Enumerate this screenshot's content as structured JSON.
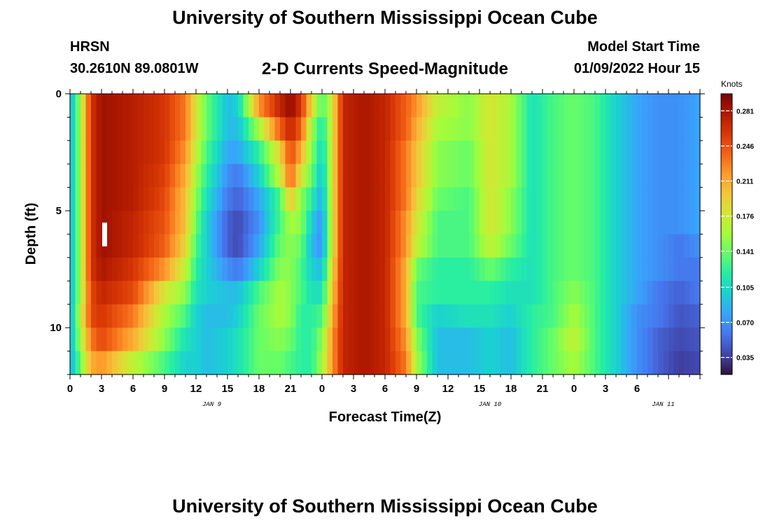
{
  "header": {
    "title": "University of Southern Mississippi Ocean Cube",
    "station": "HRSN",
    "coords": "30.2610N  89.0801W",
    "chart_title": "2-D Currents Speed-Magnitude",
    "model_label": "Model Start Time",
    "model_time": "01/09/2022 Hour 15"
  },
  "footer": {
    "title": "University of Southern Mississippi Ocean Cube"
  },
  "colors": {
    "scale": [
      "#30123b",
      "#4145ab",
      "#4675ed",
      "#39a2fc",
      "#1bcfd4",
      "#24eca6",
      "#61fc6c",
      "#a4fc3b",
      "#d1e834",
      "#f3c63a",
      "#fe9b2d",
      "#f36315",
      "#d93806",
      "#b11901",
      "#7a0402"
    ]
  },
  "chart_data": {
    "type": "heatmap",
    "xlabel": "Forecast Time(Z)",
    "ylabel": "Depth (ft)",
    "x_hours": [
      0,
      60
    ],
    "y_range": [
      0,
      12
    ],
    "x_tick_labels": [
      "0",
      "3",
      "6",
      "9",
      "12",
      "15",
      "18",
      "21",
      "0",
      "3",
      "6",
      "9",
      "12",
      "15",
      "18",
      "21",
      "0",
      "3",
      "6"
    ],
    "y_tick_labels": [
      "0",
      "5",
      "10"
    ],
    "date_labels": [
      "JAN 9",
      "JAN 10",
      "JAN 11"
    ],
    "colorbar": {
      "unit": "Knots",
      "range": [
        0.018,
        0.298
      ],
      "ticks": [
        "0.035",
        "0.070",
        "0.105",
        "0.141",
        "0.176",
        "0.211",
        "0.246",
        "0.281"
      ]
    },
    "depth_levels": 12,
    "hours": 60,
    "keyframes_note": "",
    "profiles": [
      {
        "h": 0,
        "v": [
          0.08,
          0.08,
          0.08,
          0.08,
          0.08,
          0.08,
          0.08,
          0.08,
          0.08,
          0.08,
          0.08,
          0.08
        ]
      },
      {
        "h": 1,
        "v": [
          0.16,
          0.16,
          0.16,
          0.16,
          0.16,
          0.16,
          0.16,
          0.16,
          0.16,
          0.17,
          0.16,
          0.14
        ]
      },
      {
        "h": 2,
        "v": [
          0.26,
          0.26,
          0.26,
          0.26,
          0.26,
          0.26,
          0.26,
          0.26,
          0.25,
          0.25,
          0.23,
          0.21
        ]
      },
      {
        "h": 3,
        "v": [
          0.285,
          0.285,
          0.285,
          0.285,
          0.285,
          0.285,
          0.285,
          0.28,
          0.27,
          0.26,
          0.25,
          0.22
        ]
      },
      {
        "h": 6,
        "v": [
          0.275,
          0.275,
          0.275,
          0.275,
          0.275,
          0.27,
          0.27,
          0.26,
          0.25,
          0.23,
          0.21,
          0.17
        ]
      },
      {
        "h": 9,
        "v": [
          0.26,
          0.26,
          0.26,
          0.255,
          0.25,
          0.245,
          0.24,
          0.22,
          0.18,
          0.16,
          0.15,
          0.13
        ]
      },
      {
        "h": 11,
        "v": [
          0.23,
          0.23,
          0.22,
          0.21,
          0.2,
          0.2,
          0.19,
          0.17,
          0.15,
          0.13,
          0.11,
          0.1
        ]
      },
      {
        "h": 12,
        "v": [
          0.18,
          0.18,
          0.17,
          0.16,
          0.15,
          0.14,
          0.13,
          0.12,
          0.11,
          0.1,
          0.1,
          0.1
        ]
      },
      {
        "h": 13,
        "v": [
          0.14,
          0.14,
          0.13,
          0.12,
          0.11,
          0.1,
          0.1,
          0.1,
          0.1,
          0.09,
          0.09,
          0.09
        ]
      },
      {
        "h": 15,
        "v": [
          0.09,
          0.09,
          0.08,
          0.07,
          0.06,
          0.05,
          0.05,
          0.07,
          0.09,
          0.09,
          0.1,
          0.1
        ]
      },
      {
        "h": 16,
        "v": [
          0.1,
          0.09,
          0.08,
          0.06,
          0.05,
          0.04,
          0.04,
          0.06,
          0.09,
          0.1,
          0.11,
          0.11
        ]
      },
      {
        "h": 18,
        "v": [
          0.22,
          0.16,
          0.12,
          0.1,
          0.08,
          0.07,
          0.08,
          0.1,
          0.13,
          0.14,
          0.14,
          0.14
        ]
      },
      {
        "h": 20,
        "v": [
          0.27,
          0.24,
          0.19,
          0.17,
          0.13,
          0.13,
          0.14,
          0.15,
          0.16,
          0.16,
          0.15,
          0.14
        ]
      },
      {
        "h": 21,
        "v": [
          0.29,
          0.27,
          0.25,
          0.24,
          0.2,
          0.16,
          0.15,
          0.15,
          0.15,
          0.15,
          0.14,
          0.13
        ]
      },
      {
        "h": 22,
        "v": [
          0.26,
          0.24,
          0.21,
          0.18,
          0.15,
          0.15,
          0.14,
          0.13,
          0.13,
          0.12,
          0.12,
          0.12
        ]
      },
      {
        "h": 23,
        "v": [
          0.19,
          0.16,
          0.15,
          0.14,
          0.12,
          0.1,
          0.09,
          0.1,
          0.11,
          0.12,
          0.12,
          0.12
        ]
      },
      {
        "h": 24,
        "v": [
          0.13,
          0.11,
          0.1,
          0.09,
          0.08,
          0.07,
          0.07,
          0.09,
          0.11,
          0.13,
          0.15,
          0.16
        ]
      },
      {
        "h": 25,
        "v": [
          0.18,
          0.18,
          0.18,
          0.18,
          0.18,
          0.18,
          0.18,
          0.19,
          0.2,
          0.21,
          0.22,
          0.22
        ]
      },
      {
        "h": 26,
        "v": [
          0.27,
          0.27,
          0.27,
          0.27,
          0.27,
          0.27,
          0.27,
          0.27,
          0.27,
          0.27,
          0.27,
          0.27
        ]
      },
      {
        "h": 28,
        "v": [
          0.28,
          0.28,
          0.28,
          0.28,
          0.28,
          0.28,
          0.28,
          0.28,
          0.28,
          0.28,
          0.28,
          0.28
        ]
      },
      {
        "h": 30,
        "v": [
          0.27,
          0.27,
          0.27,
          0.27,
          0.27,
          0.27,
          0.27,
          0.27,
          0.27,
          0.27,
          0.27,
          0.27
        ]
      },
      {
        "h": 32,
        "v": [
          0.24,
          0.24,
          0.23,
          0.23,
          0.23,
          0.22,
          0.22,
          0.21,
          0.21,
          0.21,
          0.22,
          0.23
        ]
      },
      {
        "h": 33,
        "v": [
          0.22,
          0.21,
          0.2,
          0.2,
          0.19,
          0.18,
          0.17,
          0.14,
          0.13,
          0.13,
          0.15,
          0.16
        ]
      },
      {
        "h": 35,
        "v": [
          0.17,
          0.16,
          0.15,
          0.15,
          0.14,
          0.13,
          0.13,
          0.12,
          0.12,
          0.1,
          0.09,
          0.09
        ]
      },
      {
        "h": 38,
        "v": [
          0.15,
          0.15,
          0.14,
          0.14,
          0.13,
          0.13,
          0.13,
          0.12,
          0.12,
          0.11,
          0.09,
          0.09
        ]
      },
      {
        "h": 40,
        "v": [
          0.18,
          0.18,
          0.18,
          0.18,
          0.18,
          0.18,
          0.17,
          0.14,
          0.12,
          0.11,
          0.1,
          0.1
        ]
      },
      {
        "h": 42,
        "v": [
          0.16,
          0.16,
          0.16,
          0.16,
          0.15,
          0.15,
          0.14,
          0.12,
          0.11,
          0.1,
          0.09,
          0.09
        ]
      },
      {
        "h": 44,
        "v": [
          0.11,
          0.11,
          0.11,
          0.11,
          0.11,
          0.11,
          0.11,
          0.11,
          0.11,
          0.12,
          0.12,
          0.12
        ]
      },
      {
        "h": 46,
        "v": [
          0.13,
          0.13,
          0.13,
          0.13,
          0.13,
          0.13,
          0.13,
          0.13,
          0.13,
          0.13,
          0.14,
          0.14
        ]
      },
      {
        "h": 48,
        "v": [
          0.14,
          0.14,
          0.14,
          0.14,
          0.14,
          0.14,
          0.14,
          0.14,
          0.15,
          0.16,
          0.17,
          0.16
        ]
      },
      {
        "h": 50,
        "v": [
          0.13,
          0.13,
          0.13,
          0.13,
          0.13,
          0.13,
          0.13,
          0.13,
          0.13,
          0.13,
          0.13,
          0.13
        ]
      },
      {
        "h": 52,
        "v": [
          0.1,
          0.1,
          0.1,
          0.1,
          0.1,
          0.1,
          0.1,
          0.1,
          0.1,
          0.1,
          0.1,
          0.1
        ]
      },
      {
        "h": 54,
        "v": [
          0.08,
          0.08,
          0.08,
          0.08,
          0.08,
          0.08,
          0.08,
          0.08,
          0.08,
          0.07,
          0.07,
          0.07
        ]
      },
      {
        "h": 56,
        "v": [
          0.07,
          0.07,
          0.07,
          0.07,
          0.07,
          0.07,
          0.07,
          0.07,
          0.06,
          0.06,
          0.05,
          0.05
        ]
      },
      {
        "h": 58,
        "v": [
          0.07,
          0.07,
          0.07,
          0.07,
          0.07,
          0.07,
          0.06,
          0.06,
          0.05,
          0.045,
          0.04,
          0.035
        ]
      },
      {
        "h": 60,
        "v": [
          0.08,
          0.08,
          0.08,
          0.08,
          0.08,
          0.08,
          0.07,
          0.06,
          0.06,
          0.05,
          0.045,
          0.04
        ]
      }
    ]
  }
}
